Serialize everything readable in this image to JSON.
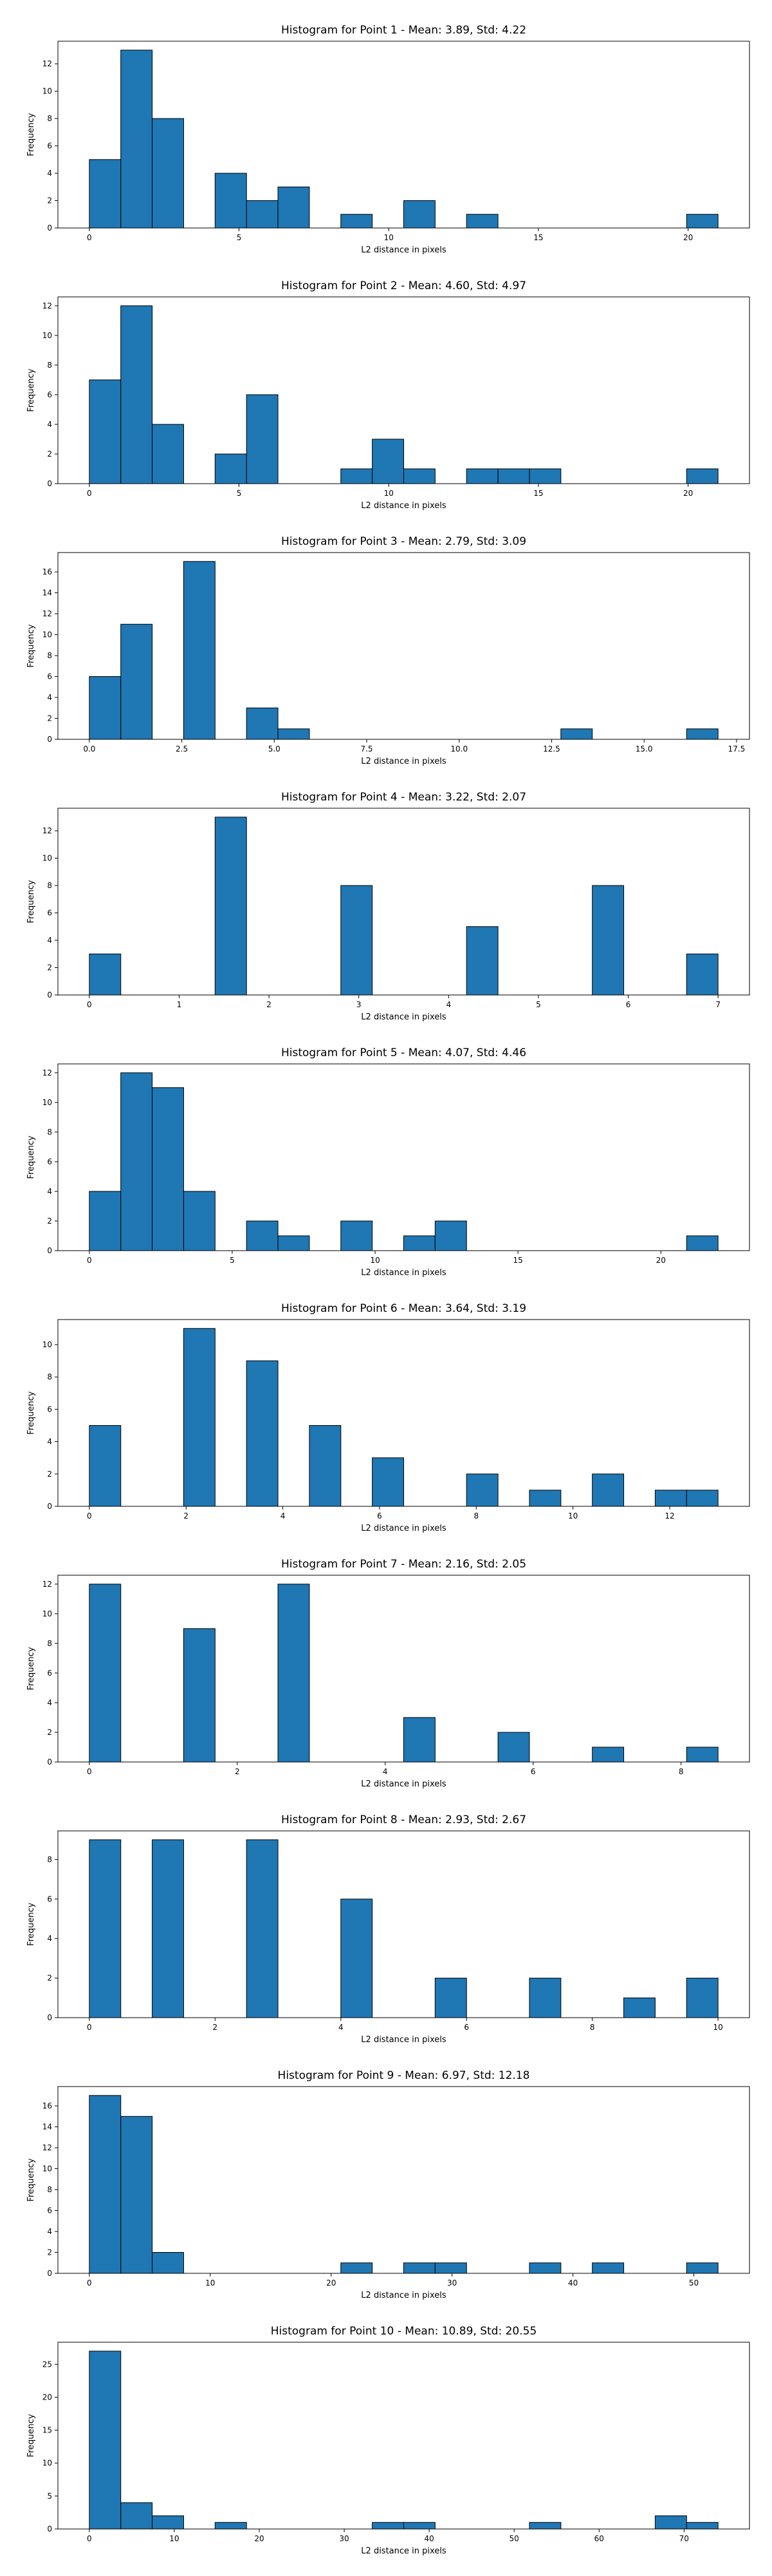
{
  "bar_color": "#1f77b4",
  "edge_color": "#000000",
  "chart_data": [
    {
      "type": "bar",
      "title": "Histogram for Point 1 - Mean: 3.89, Std: 4.22",
      "xlabel": "L2 distance in pixels",
      "ylabel": "Frequency",
      "xlim": [
        -1.05,
        22.05
      ],
      "ylim": [
        0,
        13.65
      ],
      "xticks": [
        0,
        5,
        10,
        15,
        20
      ],
      "xtick_labels": [
        "0",
        "5",
        "10",
        "15",
        "20"
      ],
      "yticks": [
        0,
        2,
        4,
        6,
        8,
        10,
        12
      ],
      "ytick_labels": [
        "0",
        "2",
        "4",
        "6",
        "8",
        "10",
        "12"
      ],
      "bin_edges": [
        0,
        1.05,
        2.1,
        3.15,
        4.2,
        5.25,
        6.3,
        7.35,
        8.4,
        9.45,
        10.5,
        11.55,
        12.6,
        13.65,
        14.7,
        15.75,
        16.8,
        17.85,
        18.9,
        19.95,
        21
      ],
      "values": [
        5,
        13,
        8,
        0,
        4,
        2,
        3,
        0,
        1,
        0,
        2,
        0,
        1,
        0,
        0,
        0,
        0,
        0,
        0,
        1
      ]
    },
    {
      "type": "bar",
      "title": "Histogram for Point 2 - Mean: 4.60, Std: 4.97",
      "xlabel": "L2 distance in pixels",
      "ylabel": "Frequency",
      "xlim": [
        -1.05,
        22.05
      ],
      "ylim": [
        0,
        12.6
      ],
      "xticks": [
        0,
        5,
        10,
        15,
        20
      ],
      "xtick_labels": [
        "0",
        "5",
        "10",
        "15",
        "20"
      ],
      "yticks": [
        0,
        2,
        4,
        6,
        8,
        10,
        12
      ],
      "ytick_labels": [
        "0",
        "2",
        "4",
        "6",
        "8",
        "10",
        "12"
      ],
      "bin_edges": [
        0,
        1.05,
        2.1,
        3.15,
        4.2,
        5.25,
        6.3,
        7.35,
        8.4,
        9.45,
        10.5,
        11.55,
        12.6,
        13.65,
        14.7,
        15.75,
        16.8,
        17.85,
        18.9,
        19.95,
        21
      ],
      "values": [
        7,
        12,
        4,
        0,
        2,
        6,
        0,
        0,
        1,
        3,
        1,
        0,
        1,
        1,
        1,
        0,
        0,
        0,
        0,
        1
      ]
    },
    {
      "type": "bar",
      "title": "Histogram for Point 3 - Mean: 2.79, Std: 3.09",
      "xlabel": "L2 distance in pixels",
      "ylabel": "Frequency",
      "xlim": [
        -0.85,
        17.85
      ],
      "ylim": [
        0,
        17.85
      ],
      "xticks": [
        0,
        2.5,
        5,
        7.5,
        10,
        12.5,
        15,
        17.5
      ],
      "xtick_labels": [
        "0.0",
        "2.5",
        "5.0",
        "7.5",
        "10.0",
        "12.5",
        "15.0",
        "17.5"
      ],
      "yticks": [
        0,
        2,
        4,
        6,
        8,
        10,
        12,
        14,
        16
      ],
      "ytick_labels": [
        "0",
        "2",
        "4",
        "6",
        "8",
        "10",
        "12",
        "14",
        "16"
      ],
      "bin_edges": [
        0,
        0.85,
        1.7,
        2.55,
        3.4,
        4.25,
        5.1,
        5.95,
        6.8,
        7.65,
        8.5,
        9.35,
        10.2,
        11.05,
        11.9,
        12.75,
        13.6,
        14.45,
        15.3,
        16.15,
        17
      ],
      "values": [
        6,
        11,
        0,
        17,
        0,
        3,
        1,
        0,
        0,
        0,
        0,
        0,
        0,
        0,
        0,
        1,
        0,
        0,
        0,
        1
      ]
    },
    {
      "type": "bar",
      "title": "Histogram for Point 4 - Mean: 3.22, Std: 2.07",
      "xlabel": "L2 distance in pixels",
      "ylabel": "Frequency",
      "xlim": [
        -0.35,
        7.35
      ],
      "ylim": [
        0,
        13.65
      ],
      "xticks": [
        0,
        1,
        2,
        3,
        4,
        5,
        6,
        7
      ],
      "xtick_labels": [
        "0",
        "1",
        "2",
        "3",
        "4",
        "5",
        "6",
        "7"
      ],
      "yticks": [
        0,
        2,
        4,
        6,
        8,
        10,
        12
      ],
      "ytick_labels": [
        "0",
        "2",
        "4",
        "6",
        "8",
        "10",
        "12"
      ],
      "bin_edges": [
        0,
        0.35,
        0.7,
        1.05,
        1.4,
        1.75,
        2.1,
        2.45,
        2.8,
        3.15,
        3.5,
        3.85,
        4.2,
        4.55,
        4.9,
        5.25,
        5.6,
        5.95,
        6.3,
        6.65,
        7
      ],
      "values": [
        3,
        0,
        0,
        0,
        13,
        0,
        0,
        0,
        8,
        0,
        0,
        0,
        5,
        0,
        0,
        0,
        8,
        0,
        0,
        3
      ]
    },
    {
      "type": "bar",
      "title": "Histogram for Point 5 - Mean: 4.07, Std: 4.46",
      "xlabel": "L2 distance in pixels",
      "ylabel": "Frequency",
      "xlim": [
        -1.1,
        23.1
      ],
      "ylim": [
        0,
        12.6
      ],
      "xticks": [
        0,
        5,
        10,
        15,
        20
      ],
      "xtick_labels": [
        "0",
        "5",
        "10",
        "15",
        "20"
      ],
      "yticks": [
        0,
        2,
        4,
        6,
        8,
        10,
        12
      ],
      "ytick_labels": [
        "0",
        "2",
        "4",
        "6",
        "8",
        "10",
        "12"
      ],
      "bin_edges": [
        0,
        1.1,
        2.2,
        3.3,
        4.4,
        5.5,
        6.6,
        7.7,
        8.8,
        9.9,
        11,
        12.1,
        13.2,
        14.3,
        15.4,
        16.5,
        17.6,
        18.7,
        19.8,
        20.9,
        22
      ],
      "values": [
        4,
        12,
        11,
        4,
        0,
        2,
        1,
        0,
        2,
        0,
        1,
        2,
        0,
        0,
        0,
        0,
        0,
        0,
        0,
        1
      ]
    },
    {
      "type": "bar",
      "title": "Histogram for Point 6 - Mean: 3.64, Std: 3.19",
      "xlabel": "L2 distance in pixels",
      "ylabel": "Frequency",
      "xlim": [
        -0.65,
        13.65
      ],
      "ylim": [
        0,
        11.55
      ],
      "xticks": [
        0,
        2,
        4,
        6,
        8,
        10,
        12
      ],
      "xtick_labels": [
        "0",
        "2",
        "4",
        "6",
        "8",
        "10",
        "12"
      ],
      "yticks": [
        0,
        2,
        4,
        6,
        8,
        10
      ],
      "ytick_labels": [
        "0",
        "2",
        "4",
        "6",
        "8",
        "10"
      ],
      "bin_edges": [
        0,
        0.65,
        1.3,
        1.95,
        2.6,
        3.25,
        3.9,
        4.55,
        5.2,
        5.85,
        6.5,
        7.15,
        7.8,
        8.45,
        9.1,
        9.75,
        10.4,
        11.05,
        11.7,
        12.35,
        13
      ],
      "values": [
        5,
        0,
        0,
        11,
        0,
        9,
        0,
        5,
        0,
        3,
        0,
        0,
        2,
        0,
        1,
        0,
        2,
        0,
        1,
        1
      ]
    },
    {
      "type": "bar",
      "title": "Histogram for Point 7 - Mean: 2.16, Std: 2.05",
      "xlabel": "L2 distance in pixels",
      "ylabel": "Frequency",
      "xlim": [
        -0.425,
        8.925
      ],
      "ylim": [
        0,
        12.6
      ],
      "xticks": [
        0,
        2,
        4,
        6,
        8
      ],
      "xtick_labels": [
        "0",
        "2",
        "4",
        "6",
        "8"
      ],
      "yticks": [
        0,
        2,
        4,
        6,
        8,
        10,
        12
      ],
      "ytick_labels": [
        "0",
        "2",
        "4",
        "6",
        "8",
        "10",
        "12"
      ],
      "bin_edges": [
        0,
        0.425,
        0.85,
        1.275,
        1.7,
        2.125,
        2.55,
        2.975,
        3.4,
        3.825,
        4.25,
        4.675,
        5.1,
        5.525,
        5.95,
        6.375,
        6.8,
        7.225,
        7.65,
        8.075,
        8.5
      ],
      "values": [
        12,
        0,
        0,
        9,
        0,
        0,
        12,
        0,
        0,
        0,
        3,
        0,
        0,
        2,
        0,
        0,
        1,
        0,
        0,
        1
      ]
    },
    {
      "type": "bar",
      "title": "Histogram for Point 8 - Mean: 2.93, Std: 2.67",
      "xlabel": "L2 distance in pixels",
      "ylabel": "Frequency",
      "xlim": [
        -0.5,
        10.5
      ],
      "ylim": [
        0,
        9.45
      ],
      "xticks": [
        0,
        2,
        4,
        6,
        8,
        10
      ],
      "xtick_labels": [
        "0",
        "2",
        "4",
        "6",
        "8",
        "10"
      ],
      "yticks": [
        0,
        2,
        4,
        6,
        8
      ],
      "ytick_labels": [
        "0",
        "2",
        "4",
        "6",
        "8"
      ],
      "bin_edges": [
        0,
        0.5,
        1,
        1.5,
        2,
        2.5,
        3,
        3.5,
        4,
        4.5,
        5,
        5.5,
        6,
        6.5,
        7,
        7.5,
        8,
        8.5,
        9,
        9.5,
        10
      ],
      "values": [
        9,
        0,
        9,
        0,
        0,
        9,
        0,
        0,
        6,
        0,
        0,
        2,
        0,
        0,
        2,
        0,
        0,
        1,
        0,
        2
      ]
    },
    {
      "type": "bar",
      "title": "Histogram for Point 9 - Mean: 6.97, Std: 12.18",
      "xlabel": "L2 distance in pixels",
      "ylabel": "Frequency",
      "xlim": [
        -2.6,
        54.6
      ],
      "ylim": [
        0,
        17.85
      ],
      "xticks": [
        0,
        10,
        20,
        30,
        40,
        50
      ],
      "xtick_labels": [
        "0",
        "10",
        "20",
        "30",
        "40",
        "50"
      ],
      "yticks": [
        0,
        2,
        4,
        6,
        8,
        10,
        12,
        14,
        16
      ],
      "ytick_labels": [
        "0",
        "2",
        "4",
        "6",
        "8",
        "10",
        "12",
        "14",
        "16"
      ],
      "bin_edges": [
        0,
        2.6,
        5.2,
        7.8,
        10.4,
        13,
        15.6,
        18.2,
        20.8,
        23.4,
        26,
        28.6,
        31.2,
        33.8,
        36.4,
        39,
        41.6,
        44.2,
        46.8,
        49.4,
        52
      ],
      "values": [
        17,
        15,
        2,
        0,
        0,
        0,
        0,
        0,
        1,
        0,
        1,
        1,
        0,
        0,
        1,
        0,
        1,
        0,
        0,
        1
      ]
    },
    {
      "type": "bar",
      "title": "Histogram for Point 10 - Mean: 10.89, Std: 20.55",
      "xlabel": "L2 distance in pixels",
      "ylabel": "Frequency",
      "xlim": [
        -3.7,
        77.7
      ],
      "ylim": [
        0,
        28.35
      ],
      "xticks": [
        0,
        10,
        20,
        30,
        40,
        50,
        60,
        70
      ],
      "xtick_labels": [
        "0",
        "10",
        "20",
        "30",
        "40",
        "50",
        "60",
        "70"
      ],
      "yticks": [
        0,
        5,
        10,
        15,
        20,
        25
      ],
      "ytick_labels": [
        "0",
        "5",
        "10",
        "15",
        "20",
        "25"
      ],
      "bin_edges": [
        0,
        3.7,
        7.4,
        11.1,
        14.8,
        18.5,
        22.2,
        25.9,
        29.6,
        33.3,
        37,
        40.7,
        44.4,
        48.1,
        51.8,
        55.5,
        59.2,
        62.9,
        66.6,
        70.3,
        74
      ],
      "values": [
        27,
        4,
        2,
        0,
        1,
        0,
        0,
        0,
        0,
        1,
        1,
        0,
        0,
        0,
        1,
        0,
        0,
        0,
        2,
        1
      ]
    }
  ]
}
